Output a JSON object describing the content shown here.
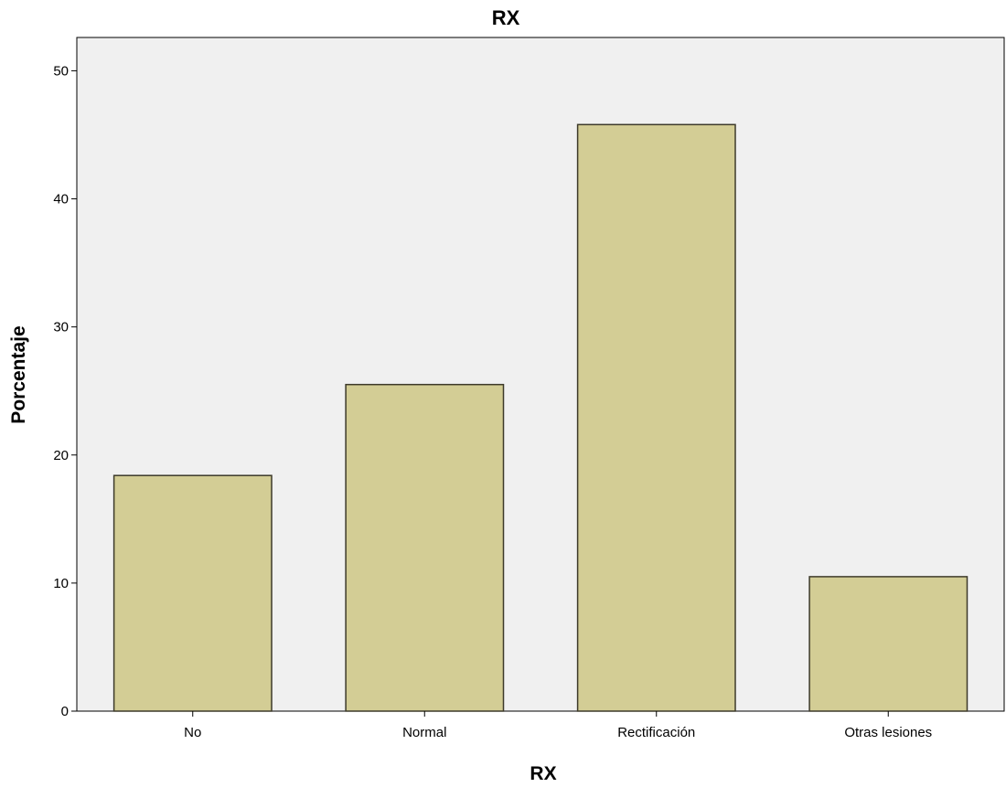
{
  "chart_data": {
    "type": "bar",
    "title": "RX",
    "xlabel": "RX",
    "ylabel": "Porcentaje",
    "categories": [
      "No",
      "Normal",
      "Rectificación",
      "Otras lesiones"
    ],
    "values": [
      18.4,
      25.5,
      45.8,
      10.5
    ],
    "ylim": [
      0,
      52.6
    ],
    "yticks": [
      0,
      10,
      20,
      30,
      40,
      50
    ],
    "grid": false,
    "legend": "none"
  },
  "colors": {
    "bar_fill": "#d3cd95",
    "bar_stroke": "#3d3a2a",
    "plot_background": "#f0f0f0",
    "axis": "#000000"
  }
}
